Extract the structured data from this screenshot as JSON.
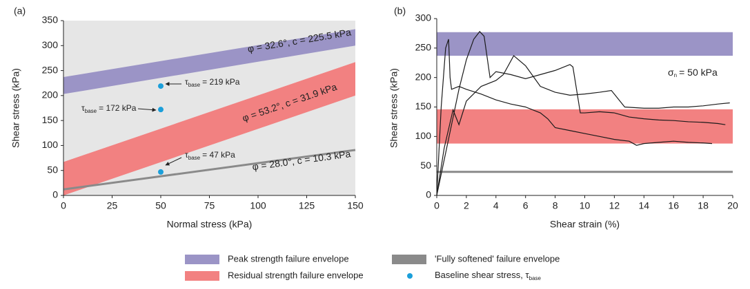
{
  "chart_data": [
    {
      "type": "envelope",
      "panel": "(a)",
      "xlabel": "Normal stress (kPa)",
      "ylabel": "Shear stress (kPa)",
      "xlim": [
        0,
        150
      ],
      "ylim": [
        0,
        350
      ],
      "xticks": [
        0,
        25,
        50,
        75,
        100,
        125,
        150
      ],
      "yticks": [
        0,
        50,
        100,
        150,
        200,
        250,
        300,
        350
      ],
      "series": [
        {
          "name": "Peak strength failure envelope",
          "type": "band",
          "color": "#9b94c6",
          "x": [
            0,
            150
          ],
          "lower": [
            203,
            300
          ],
          "upper": [
            237,
            333
          ],
          "label": "φ = 32.6°, c = 225.5 kPa"
        },
        {
          "name": "Residual strength failure envelope",
          "type": "band",
          "color": "#f28181",
          "x": [
            0,
            150
          ],
          "lower": [
            0,
            200
          ],
          "upper": [
            67,
            267
          ],
          "label": "φ = 53.2°, c = 31.9 kPa"
        },
        {
          "name": "'Fully softened' failure envelope",
          "type": "line",
          "color": "#8a8a8a",
          "x": [
            0,
            150
          ],
          "values": [
            12,
            91
          ],
          "label": "φ = 28.0°, c = 10.3 kPa"
        },
        {
          "name": "Baseline shear stress, τ",
          "name_subscript": "base",
          "type": "scatter",
          "color": "#1b9fda",
          "x": [
            50,
            50,
            50
          ],
          "values": [
            219,
            172,
            47
          ],
          "value_labels": [
            {
              "symbol": "τ",
              "subscript": "base",
              "text": "= 219 kPa"
            },
            {
              "symbol": "τ",
              "subscript": "base",
              "text": "= 172 kPa"
            },
            {
              "symbol": "τ",
              "subscript": "base",
              "text": "= 47 kPa"
            }
          ]
        }
      ]
    },
    {
      "type": "envelope",
      "panel": "(b)",
      "xlabel": "Shear strain (%)",
      "ylabel": "Shear stress (kPa)",
      "xlim": [
        0,
        20
      ],
      "ylim": [
        0,
        300
      ],
      "xticks": [
        0,
        2,
        4,
        6,
        8,
        10,
        12,
        14,
        16,
        18,
        20
      ],
      "yticks": [
        0,
        50,
        100,
        150,
        200,
        250,
        300
      ],
      "annotation": {
        "symbol": "σ",
        "subscript": "n",
        "text": "= 50 kPa"
      },
      "series": [
        {
          "type": "band",
          "color": "#9b94c6",
          "x": [
            0,
            20
          ],
          "lower": [
            237,
            237
          ],
          "upper": [
            277,
            277
          ]
        },
        {
          "type": "band",
          "color": "#f28181",
          "x": [
            0,
            20
          ],
          "lower": [
            88,
            88
          ],
          "upper": [
            146,
            146
          ]
        },
        {
          "type": "line",
          "color": "#8a8a8a",
          "x": [
            0,
            20
          ],
          "values": [
            40,
            40
          ]
        },
        {
          "type": "curve",
          "color": "#1a1a1a",
          "x": [
            0,
            0.3,
            0.6,
            0.8,
            0.9,
            1.0,
            1.5,
            2,
            3,
            4,
            5,
            6,
            7,
            7.5,
            8,
            9,
            10,
            11,
            12,
            13,
            13.5,
            14,
            15,
            16,
            17,
            18,
            18.6
          ],
          "values": [
            0,
            150,
            250,
            265,
            200,
            180,
            185,
            180,
            172,
            162,
            155,
            150,
            140,
            130,
            115,
            110,
            105,
            100,
            95,
            92,
            85,
            88,
            90,
            92,
            90,
            89,
            88
          ]
        },
        {
          "type": "curve",
          "color": "#1a1a1a",
          "x": [
            0,
            0.5,
            1,
            1.5,
            2,
            2.5,
            2.9,
            3.2,
            3.6,
            4,
            5,
            6,
            7,
            8,
            9,
            9.2,
            9.7,
            10,
            11,
            12,
            13,
            14,
            15,
            16,
            17,
            18,
            19,
            19.5
          ],
          "values": [
            0,
            60,
            120,
            180,
            230,
            265,
            278,
            270,
            200,
            210,
            205,
            198,
            205,
            212,
            222,
            218,
            140,
            140,
            142,
            140,
            133,
            130,
            128,
            127,
            125,
            124,
            122,
            120
          ]
        },
        {
          "type": "curve",
          "color": "#1a1a1a",
          "x": [
            0,
            0.5,
            1.1,
            1.5,
            2,
            3,
            4,
            4.5,
            5.2,
            6,
            7,
            8,
            9,
            10,
            11,
            11.8,
            12.7,
            14,
            15,
            16,
            17,
            18,
            19,
            19.8
          ],
          "values": [
            0,
            80,
            145,
            120,
            160,
            185,
            195,
            205,
            237,
            220,
            185,
            175,
            170,
            172,
            175,
            178,
            150,
            148,
            148,
            150,
            150,
            152,
            155,
            157
          ]
        }
      ]
    }
  ]
}
